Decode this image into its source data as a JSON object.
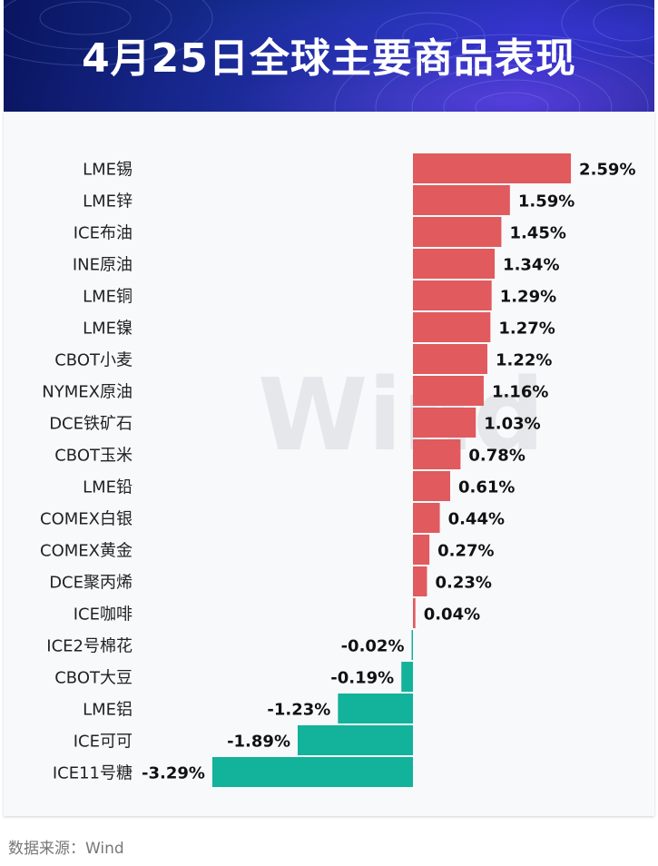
{
  "header": {
    "title": "4月25日全球主要商品表现"
  },
  "source": "数据来源：Wind",
  "watermark": "Wind",
  "colors": {
    "positive": "#e05a5e",
    "negative": "#12b29b",
    "banner": "#1a2a8c"
  },
  "chart_data": {
    "type": "bar",
    "orientation": "horizontal",
    "unit": "%",
    "categories": [
      "LME锡",
      "LME锌",
      "ICE布油",
      "INE原油",
      "LME铜",
      "LME镍",
      "CBOT小麦",
      "NYMEX原油",
      "DCE铁矿石",
      "CBOT玉米",
      "LME铅",
      "COMEX白银",
      "COMEX黄金",
      "DCE聚丙烯",
      "ICE咖啡",
      "ICE2号棉花",
      "CBOT大豆",
      "LME铝",
      "ICE可可",
      "ICE11号糖"
    ],
    "values": [
      2.59,
      1.59,
      1.45,
      1.34,
      1.29,
      1.27,
      1.22,
      1.16,
      1.03,
      0.78,
      0.61,
      0.44,
      0.27,
      0.23,
      0.04,
      -0.02,
      -0.19,
      -1.23,
      -1.89,
      -3.29
    ],
    "labels": [
      "2.59%",
      "1.59%",
      "1.45%",
      "1.34%",
      "1.29%",
      "1.27%",
      "1.22%",
      "1.16%",
      "1.03%",
      "0.78%",
      "0.61%",
      "0.44%",
      "0.27%",
      "0.23%",
      "0.04%",
      "-0.02%",
      "-0.19%",
      "-1.23%",
      "-1.89%",
      "-3.29%"
    ]
  }
}
